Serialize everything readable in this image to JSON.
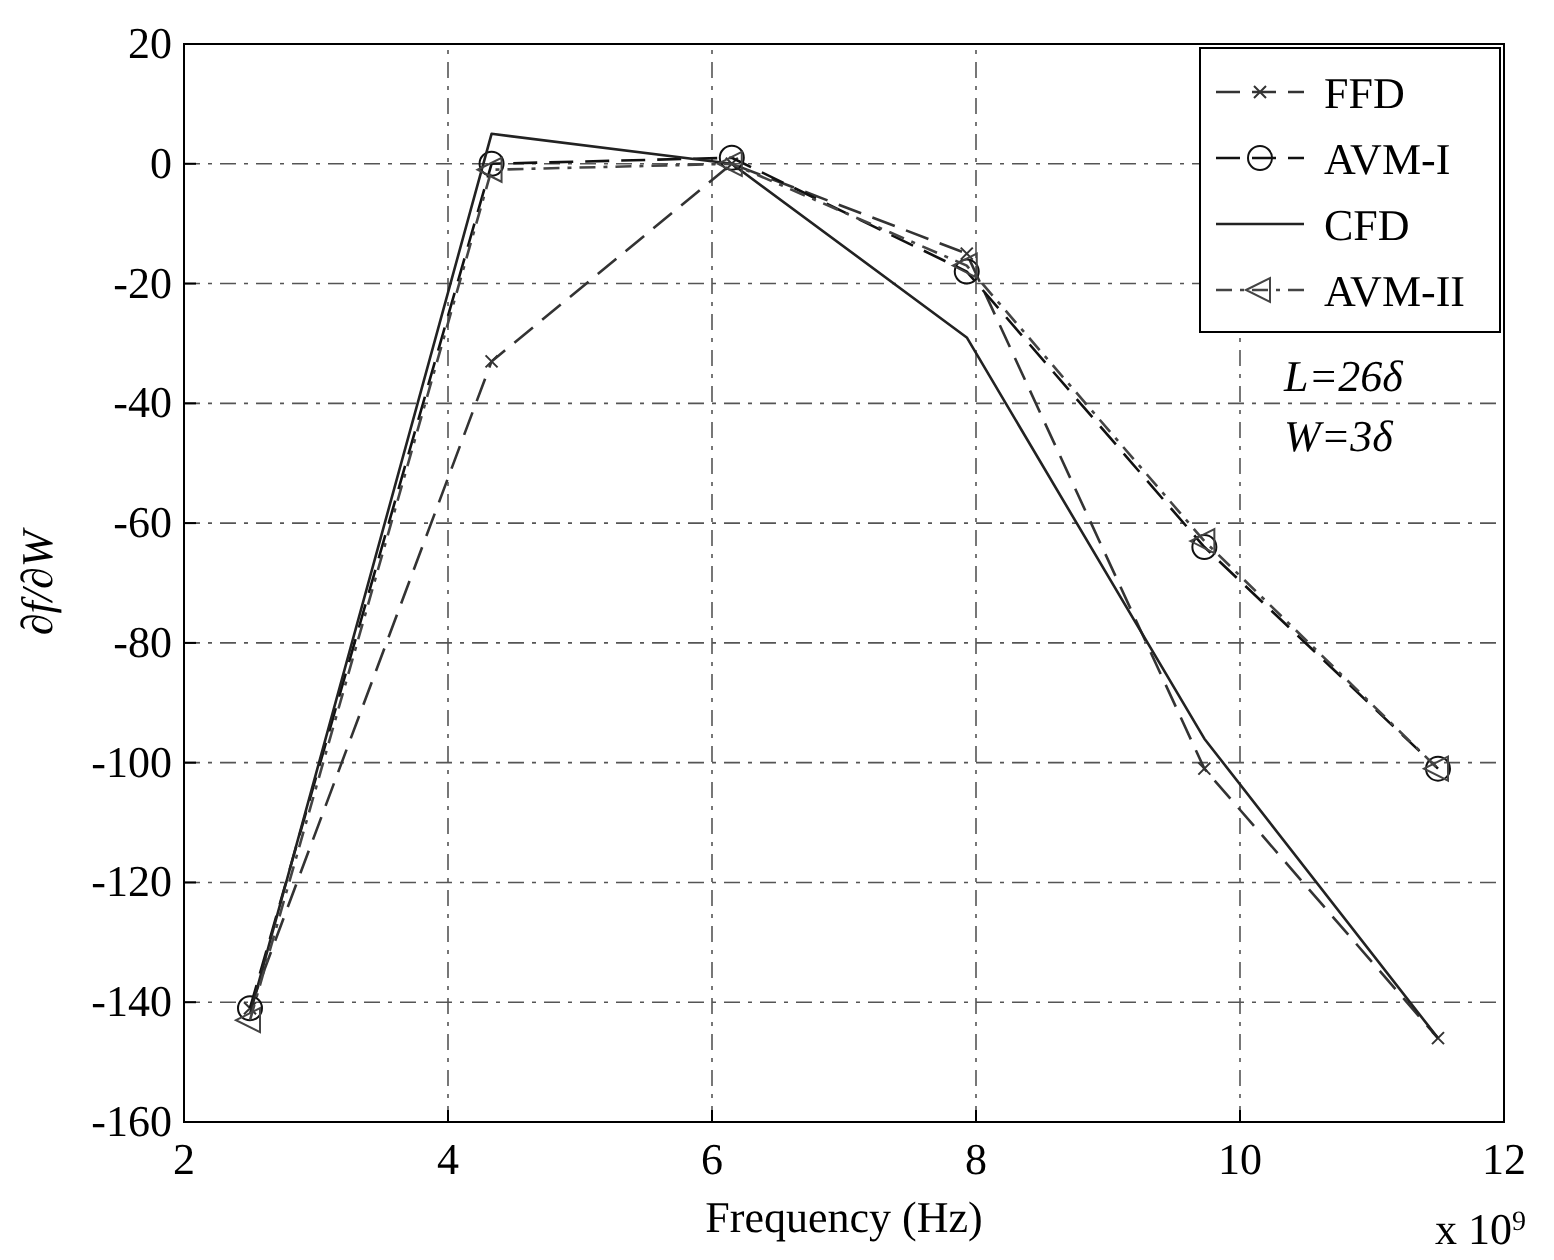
{
  "chart_data": {
    "type": "line",
    "xlabel": "Frequency (Hz)",
    "ylabel": "∂f/∂W",
    "x": [
      2.5,
      4.33,
      6.15,
      7.93,
      9.73,
      11.5
    ],
    "xlim": [
      2,
      12
    ],
    "xticks": [
      2,
      4,
      6,
      8,
      10,
      12
    ],
    "ylim": [
      -160,
      20
    ],
    "yticks": [
      -160,
      -140,
      -120,
      -100,
      -80,
      -60,
      -40,
      -20,
      0,
      20
    ],
    "grid": true,
    "legend": "top right",
    "series": [
      {
        "name": "FFD",
        "color": "#333333",
        "marker": "cross",
        "line_style": "dashed",
        "values": [
          -141,
          -33,
          0,
          -15,
          -101,
          -146
        ]
      },
      {
        "name": "AVM-I",
        "color": "#111111",
        "marker": "circle",
        "line_style": "dashed",
        "values": [
          -141,
          0,
          1,
          -18,
          -64,
          -101
        ]
      },
      {
        "name": "CFD",
        "color": "#222222",
        "marker": "none",
        "line_style": "solid",
        "values": [
          -142,
          5,
          0,
          -29,
          -96,
          -146
        ]
      },
      {
        "name": "AVM-II",
        "color": "#444444",
        "marker": "triangle",
        "line_style": "dotted",
        "values": [
          -143,
          -1,
          0,
          -17,
          -63,
          -101
        ]
      }
    ],
    "annotations": [
      "L=26δ",
      "W=3δ",
      "x 10$^{9}$"
    ]
  }
}
